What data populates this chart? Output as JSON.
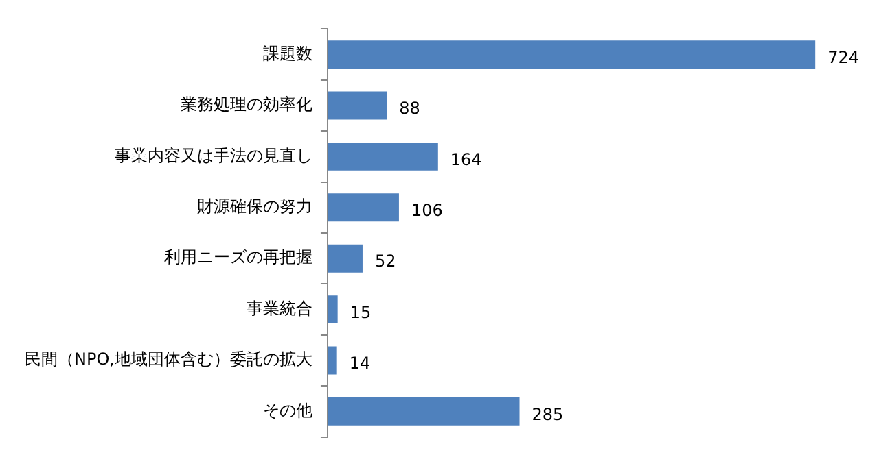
{
  "chart_data": {
    "type": "bar",
    "orientation": "horizontal",
    "categories": [
      "課題数",
      "業務処理の効率化",
      "事業内容又は手法の見直し",
      "財源確保の努力",
      "利用ニーズの再把握",
      "事業統合",
      "民間（NPO,地域団体含む）委託の拡大",
      "その他"
    ],
    "values": [
      724,
      88,
      164,
      106,
      52,
      15,
      14,
      285
    ],
    "color": "#4f81bd",
    "data_labels": true
  }
}
